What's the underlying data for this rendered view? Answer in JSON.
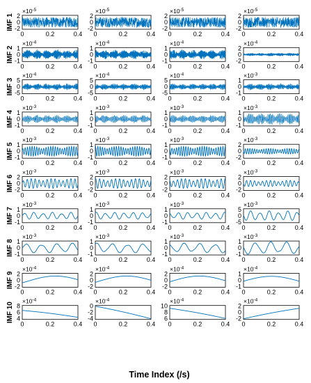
{
  "chart_data": {
    "type": "line",
    "xlabel": "Time Index (/s)",
    "x_range": [
      0,
      0.4
    ],
    "x_ticks": [
      "0",
      "0.2",
      "0.4"
    ],
    "columns": 4,
    "line_color": "#0072BD",
    "rows": [
      {
        "label": "IMF 1",
        "exponents": [
          "-5",
          "-5",
          "-5",
          "-5"
        ],
        "yticks": [
          [
            "2",
            "0",
            "-2"
          ],
          [
            "2",
            "0",
            "-2"
          ],
          [
            "2",
            "0",
            "-2"
          ],
          [
            "2",
            "0",
            "-2"
          ]
        ],
        "ylim": [
          [
            -2,
            2
          ],
          [
            -2,
            2
          ],
          [
            -2,
            2
          ],
          [
            -2,
            2
          ]
        ],
        "kind": "noise",
        "amp": [
          [
            1.5,
            1.5,
            1.5,
            1.5
          ]
        ],
        "freq": 0
      },
      {
        "label": "IMF 2",
        "exponents": [
          "-4",
          "-4",
          "-4",
          "-4"
        ],
        "yticks": [
          [
            "1",
            "0",
            "-1"
          ],
          [
            "1",
            "0",
            "-1"
          ],
          [
            "1",
            "0",
            "-1"
          ],
          [
            "2",
            "0",
            "-2"
          ]
        ],
        "ylim": [
          [
            -1,
            1
          ],
          [
            -1,
            1
          ],
          [
            -1,
            1
          ],
          [
            -2,
            2
          ]
        ],
        "kind": "burst",
        "amp": [
          [
            0.75,
            0.75,
            0.75,
            0.5
          ]
        ],
        "freq": 300
      },
      {
        "label": "IMF 3",
        "exponents": [
          "-4",
          "-4",
          "-4",
          "-3"
        ],
        "yticks": [
          [
            "5",
            "0",
            "-5"
          ],
          [
            "5",
            "0",
            "-5"
          ],
          [
            "5",
            "0",
            "-5"
          ],
          [
            "1",
            "0",
            "-1"
          ]
        ],
        "ylim": [
          [
            -5,
            5
          ],
          [
            -5,
            5
          ],
          [
            -5,
            5
          ],
          [
            -1,
            1
          ]
        ],
        "kind": "burst",
        "amp": [
          [
            2.5,
            2.5,
            2.5,
            0.5
          ]
        ],
        "freq": 180
      },
      {
        "label": "IMF 4",
        "exponents": [
          "-3",
          "-3",
          "-3",
          "-3"
        ],
        "yticks": [
          [
            "1",
            "0",
            "-1"
          ],
          [
            "1",
            "0",
            "-1"
          ],
          [
            "1",
            "0",
            "-1"
          ],
          [
            "1",
            "0",
            "-1"
          ]
        ],
        "ylim": [
          [
            -1,
            1
          ],
          [
            -1,
            1
          ],
          [
            -1,
            1
          ],
          [
            -1,
            1
          ]
        ],
        "kind": "burst",
        "amp": [
          [
            0.6,
            0.6,
            0.6,
            0.9
          ]
        ],
        "freq": 110
      },
      {
        "label": "IMF 5",
        "exponents": [
          "-3",
          "-3",
          "-3",
          "-3"
        ],
        "yticks": [
          [
            "1",
            "0",
            "-1"
          ],
          [
            "1",
            "0",
            "-1"
          ],
          [
            "1",
            "0",
            "-1"
          ],
          [
            "2",
            "0",
            "-2"
          ]
        ],
        "ylim": [
          [
            -1,
            1
          ],
          [
            -1,
            1
          ],
          [
            -1,
            1
          ],
          [
            -2,
            2
          ]
        ],
        "kind": "wave",
        "amp": [
          [
            0.7,
            0.7,
            0.7,
            0.8
          ]
        ],
        "freq": 60
      },
      {
        "label": "IMF 6",
        "exponents": [
          "-3",
          "-3",
          "-3",
          "-3"
        ],
        "yticks": [
          [
            "2",
            "0",
            "-2"
          ],
          [
            "2",
            "0",
            "-2"
          ],
          [
            "2",
            "0",
            "-2"
          ],
          [
            "2",
            "0",
            "-2"
          ]
        ],
        "ylim": [
          [
            -2,
            2
          ],
          [
            -2,
            2
          ],
          [
            -2,
            2
          ],
          [
            -2,
            2
          ]
        ],
        "kind": "wave",
        "amp": [
          [
            1.4,
            1.4,
            1.4,
            0.9
          ]
        ],
        "freq": 35
      },
      {
        "label": "IMF 7",
        "exponents": [
          "-3",
          "-3",
          "-3",
          "-3"
        ],
        "yticks": [
          [
            "1",
            "0",
            "-1"
          ],
          [
            "1",
            "0",
            "-1"
          ],
          [
            "1",
            "0",
            "-1"
          ],
          [
            "5",
            "0",
            "-5"
          ]
        ],
        "ylim": [
          [
            -1,
            1
          ],
          [
            -1,
            1
          ],
          [
            -1,
            1
          ],
          [
            -5,
            5
          ]
        ],
        "kind": "wave",
        "amp": [
          [
            0.5,
            0.5,
            0.5,
            3.5
          ]
        ],
        "freq": 15
      },
      {
        "label": "IMF 8",
        "exponents": [
          "-3",
          "-3",
          "-3",
          "-3"
        ],
        "yticks": [
          [
            "1",
            "0",
            "-1"
          ],
          [
            "1",
            "0",
            "-1"
          ],
          [
            "1",
            "0",
            "-1"
          ],
          [
            "1",
            "0",
            "-1"
          ]
        ],
        "ylim": [
          [
            -1,
            1
          ],
          [
            -1,
            1
          ],
          [
            -1,
            1
          ],
          [
            -1,
            1
          ]
        ],
        "kind": "wave",
        "amp": [
          [
            0.7,
            0.7,
            0.7,
            0.9
          ]
        ],
        "freq": 9
      },
      {
        "label": "IMF 9",
        "exponents": [
          "-4",
          "-4",
          "-4",
          "-4"
        ],
        "yticks": [
          [
            "2",
            "0",
            "-2"
          ],
          [
            "2",
            "0",
            "-2"
          ],
          [
            "2",
            "0",
            "-2"
          ],
          [
            "1",
            "0",
            "-1"
          ]
        ],
        "ylim": [
          [
            -2,
            2
          ],
          [
            -2,
            2
          ],
          [
            -2,
            2
          ],
          [
            -1,
            1
          ]
        ],
        "kind": "arc",
        "amp": [
          [
            1.5,
            1.5,
            1.5,
            0.7
          ]
        ],
        "freq": 1
      },
      {
        "label": "IMF 10",
        "exponents": [
          "-4",
          "-4",
          "-4",
          "-4"
        ],
        "yticks": [
          [
            "8",
            "6",
            "4"
          ],
          [
            "0",
            "-2",
            "-4"
          ],
          [
            "10",
            "8",
            "6"
          ],
          [
            "2",
            "0",
            "-2"
          ]
        ],
        "ylim": [
          [
            4,
            8
          ],
          [
            -4,
            0
          ],
          [
            6,
            10
          ],
          [
            -2,
            2
          ]
        ],
        "kind": "trend",
        "amp": [
          [
            0,
            0,
            0,
            0
          ]
        ],
        "freq": 0,
        "trend": [
          [
            6.6,
            4.6
          ],
          [
            -0.2,
            -3.8
          ],
          [
            9.2,
            6.3
          ],
          [
            -1.8,
            1.2
          ]
        ]
      }
    ]
  }
}
